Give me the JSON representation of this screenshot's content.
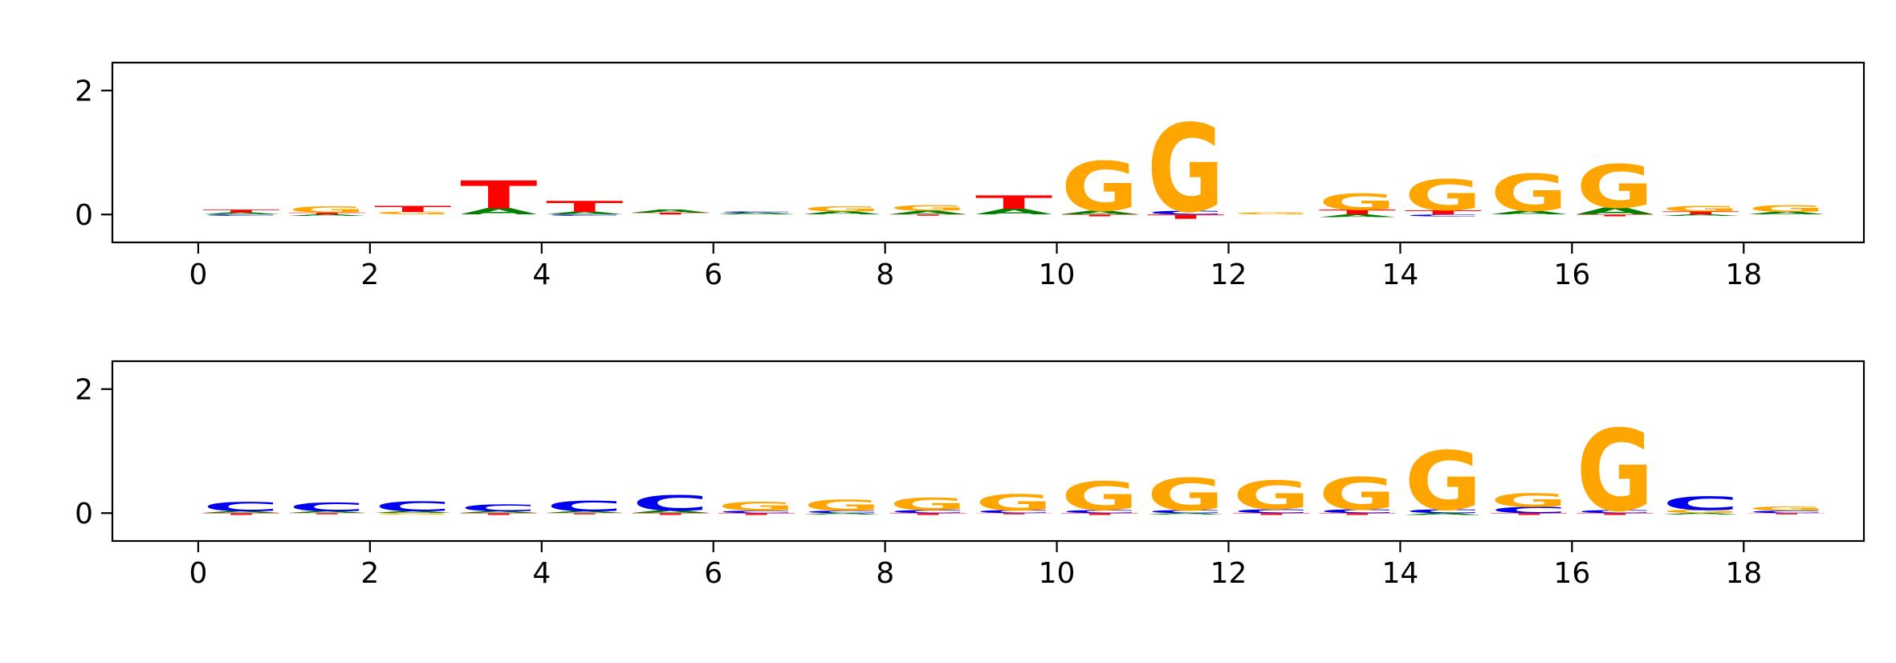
{
  "figure": {
    "background": "#ffffff"
  },
  "chart_data": [
    {
      "type": "sequence_logo",
      "panel": "top",
      "title": "",
      "xlabel": "",
      "ylabel": "",
      "xlim": [
        -1.0,
        19.4
      ],
      "ylim": [
        -0.45,
        2.45
      ],
      "xticks": [
        0,
        2,
        4,
        6,
        8,
        10,
        12,
        14,
        16,
        18
      ],
      "yticks": [
        0,
        2
      ],
      "grid": false,
      "legend": "none",
      "letter_colors": {
        "A": "#008000",
        "C": "#0000ee",
        "G": "#ffa500",
        "T": "#ff0000"
      },
      "positions": [
        {
          "x": 0,
          "stack": [
            [
              "A",
              0.03
            ],
            [
              "T",
              0.05
            ]
          ],
          "neg": [
            [
              "C",
              -0.02
            ]
          ]
        },
        {
          "x": 1,
          "stack": [
            [
              "T",
              0.03
            ],
            [
              "G",
              0.1
            ]
          ],
          "neg": [
            [
              "A",
              -0.02
            ]
          ]
        },
        {
          "x": 2,
          "stack": [
            [
              "G",
              0.04
            ],
            [
              "T",
              0.1
            ]
          ],
          "neg": []
        },
        {
          "x": 3,
          "stack": [
            [
              "A",
              0.1
            ],
            [
              "T",
              0.45
            ]
          ],
          "neg": []
        },
        {
          "x": 4,
          "stack": [
            [
              "A",
              0.04
            ],
            [
              "T",
              0.18
            ]
          ],
          "neg": [
            [
              "C",
              -0.02
            ]
          ]
        },
        {
          "x": 5,
          "stack": [
            [
              "T",
              0.03
            ],
            [
              "A",
              0.05
            ]
          ],
          "neg": []
        },
        {
          "x": 6,
          "stack": [
            [
              "A",
              0.03
            ],
            [
              "C",
              0.02
            ]
          ],
          "neg": []
        },
        {
          "x": 7,
          "stack": [
            [
              "A",
              0.05
            ],
            [
              "G",
              0.08
            ]
          ],
          "neg": []
        },
        {
          "x": 8,
          "stack": [
            [
              "A",
              0.06
            ],
            [
              "G",
              0.09
            ]
          ],
          "neg": [
            [
              "T",
              -0.02
            ]
          ]
        },
        {
          "x": 9,
          "stack": [
            [
              "A",
              0.09
            ],
            [
              "T",
              0.22
            ]
          ],
          "neg": []
        },
        {
          "x": 10,
          "stack": [
            [
              "A",
              0.06
            ],
            [
              "G",
              0.8
            ]
          ],
          "neg": [
            [
              "T",
              -0.03
            ]
          ]
        },
        {
          "x": 11,
          "stack": [
            [
              "C",
              0.06
            ],
            [
              "G",
              1.42
            ]
          ],
          "neg": [
            [
              "T",
              -0.07
            ]
          ]
        },
        {
          "x": 12,
          "stack": [
            [
              "G",
              0.03
            ]
          ],
          "neg": []
        },
        {
          "x": 13,
          "stack": [
            [
              "T",
              0.08
            ],
            [
              "G",
              0.26
            ]
          ],
          "neg": [
            [
              "A",
              -0.04
            ]
          ]
        },
        {
          "x": 14,
          "stack": [
            [
              "T",
              0.07
            ],
            [
              "G",
              0.5
            ]
          ],
          "neg": [
            [
              "C",
              -0.03
            ]
          ]
        },
        {
          "x": 15,
          "stack": [
            [
              "A",
              0.06
            ],
            [
              "G",
              0.6
            ]
          ],
          "neg": []
        },
        {
          "x": 16,
          "stack": [
            [
              "A",
              0.11
            ],
            [
              "G",
              0.7
            ]
          ],
          "neg": [
            [
              "T",
              -0.03
            ]
          ]
        },
        {
          "x": 17,
          "stack": [
            [
              "T",
              0.05
            ],
            [
              "G",
              0.09
            ]
          ],
          "neg": [
            [
              "A",
              -0.02
            ]
          ]
        },
        {
          "x": 18,
          "stack": [
            [
              "A",
              0.04
            ],
            [
              "G",
              0.11
            ]
          ],
          "neg": []
        }
      ]
    },
    {
      "type": "sequence_logo",
      "panel": "bottom",
      "title": "",
      "xlabel": "",
      "ylabel": "",
      "xlim": [
        -1.0,
        19.4
      ],
      "ylim": [
        -0.45,
        2.45
      ],
      "xticks": [
        0,
        2,
        4,
        6,
        8,
        10,
        12,
        14,
        16,
        18
      ],
      "yticks": [
        0,
        2
      ],
      "grid": false,
      "legend": "none",
      "letter_colors": {
        "A": "#008000",
        "C": "#0000ee",
        "G": "#ffa500",
        "T": "#ff0000"
      },
      "positions": [
        {
          "x": 0,
          "stack": [
            [
              "A",
              0.03
            ],
            [
              "C",
              0.15
            ]
          ],
          "neg": [
            [
              "T",
              -0.03
            ]
          ]
        },
        {
          "x": 1,
          "stack": [
            [
              "A",
              0.03
            ],
            [
              "C",
              0.14
            ]
          ],
          "neg": [
            [
              "T",
              -0.02
            ]
          ]
        },
        {
          "x": 2,
          "stack": [
            [
              "A",
              0.03
            ],
            [
              "C",
              0.16
            ]
          ],
          "neg": [
            [
              "G",
              -0.02
            ]
          ]
        },
        {
          "x": 3,
          "stack": [
            [
              "A",
              0.03
            ],
            [
              "C",
              0.11
            ]
          ],
          "neg": [
            [
              "T",
              -0.03
            ]
          ]
        },
        {
          "x": 4,
          "stack": [
            [
              "A",
              0.03
            ],
            [
              "C",
              0.17
            ]
          ],
          "neg": [
            [
              "T",
              -0.02
            ]
          ]
        },
        {
          "x": 5,
          "stack": [
            [
              "A",
              0.04
            ],
            [
              "C",
              0.25
            ]
          ],
          "neg": [
            [
              "T",
              -0.03
            ]
          ]
        },
        {
          "x": 6,
          "stack": [
            [
              "C",
              0.04
            ],
            [
              "G",
              0.14
            ]
          ],
          "neg": [
            [
              "T",
              -0.03
            ]
          ]
        },
        {
          "x": 7,
          "stack": [
            [
              "C",
              0.04
            ],
            [
              "G",
              0.18
            ]
          ],
          "neg": [
            [
              "A",
              -0.02
            ]
          ]
        },
        {
          "x": 8,
          "stack": [
            [
              "C",
              0.05
            ],
            [
              "G",
              0.2
            ]
          ],
          "neg": [
            [
              "T",
              -0.03
            ]
          ]
        },
        {
          "x": 9,
          "stack": [
            [
              "C",
              0.05
            ],
            [
              "G",
              0.26
            ]
          ],
          "neg": [
            [
              "T",
              -0.02
            ]
          ]
        },
        {
          "x": 10,
          "stack": [
            [
              "C",
              0.05
            ],
            [
              "G",
              0.46
            ]
          ],
          "neg": [
            [
              "T",
              -0.03
            ]
          ]
        },
        {
          "x": 11,
          "stack": [
            [
              "C",
              0.05
            ],
            [
              "G",
              0.52
            ]
          ],
          "neg": [
            [
              "A",
              -0.02
            ]
          ]
        },
        {
          "x": 12,
          "stack": [
            [
              "C",
              0.06
            ],
            [
              "G",
              0.46
            ]
          ],
          "neg": [
            [
              "T",
              -0.03
            ]
          ]
        },
        {
          "x": 13,
          "stack": [
            [
              "C",
              0.06
            ],
            [
              "G",
              0.52
            ]
          ],
          "neg": [
            [
              "T",
              -0.03
            ]
          ]
        },
        {
          "x": 14,
          "stack": [
            [
              "C",
              0.06
            ],
            [
              "G",
              0.95
            ]
          ],
          "neg": [
            [
              "A",
              -0.03
            ]
          ]
        },
        {
          "x": 15,
          "stack": [
            [
              "C",
              0.1
            ],
            [
              "G",
              0.22
            ]
          ],
          "neg": [
            [
              "T",
              -0.03
            ]
          ]
        },
        {
          "x": 16,
          "stack": [
            [
              "C",
              0.05
            ],
            [
              "G",
              1.32
            ]
          ],
          "neg": [
            [
              "T",
              -0.03
            ]
          ]
        },
        {
          "x": 17,
          "stack": [
            [
              "G",
              0.05
            ],
            [
              "C",
              0.22
            ]
          ],
          "neg": [
            [
              "A",
              -0.02
            ]
          ]
        },
        {
          "x": 18,
          "stack": [
            [
              "C",
              0.04
            ],
            [
              "G",
              0.07
            ]
          ],
          "neg": [
            [
              "T",
              -0.02
            ]
          ]
        }
      ]
    }
  ]
}
